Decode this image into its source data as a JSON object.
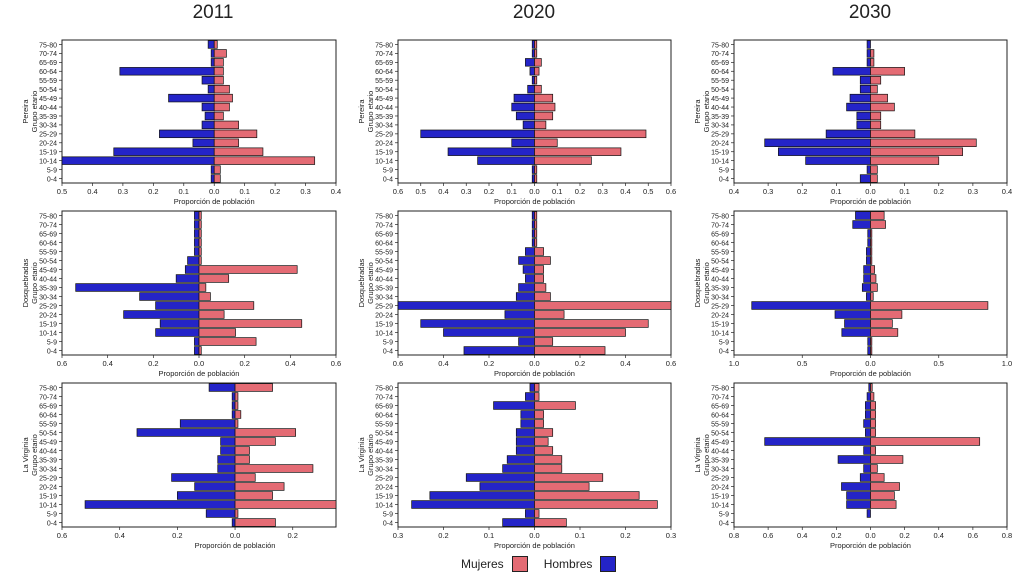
{
  "columns": [
    "2011",
    "2020",
    "2030"
  ],
  "legend": {
    "mujeres": "Mujeres",
    "hombres": "Hombres",
    "mujeres_color": "#E46B74",
    "hombres_color": "#2424C8"
  },
  "age_groups": [
    "0-4",
    "5-9",
    "10-14",
    "15-19",
    "20-24",
    "25-29",
    "30-34",
    "35-39",
    "40-44",
    "45-49",
    "50-54",
    "55-59",
    "60-64",
    "65-69",
    "70-74",
    "75-80"
  ],
  "xlabel": "Proporción de población",
  "ylabel_suffix": "Grupo etario",
  "chart_data": [
    {
      "type": "bar",
      "orientation": "horizontal",
      "municipio": "Pereira",
      "year": "2011",
      "xlim": [
        -0.5,
        0.4
      ],
      "xticks": [
        -0.5,
        -0.4,
        -0.3,
        -0.2,
        -0.1,
        0,
        0.1,
        0.2,
        0.3,
        0.4
      ],
      "xtick_labels": [
        "0.5",
        "0.4",
        "0.3",
        "0.2",
        "0.1",
        "0.0",
        "0.1",
        "0.2",
        "0.3",
        "0.4"
      ],
      "mujeres": [
        0.02,
        0.02,
        0.33,
        0.16,
        0.08,
        0.14,
        0.08,
        0.03,
        0.05,
        0.06,
        0.05,
        0.03,
        0.03,
        0.03,
        0.04,
        0.01
      ],
      "hombres": [
        0.01,
        0.01,
        0.5,
        0.33,
        0.07,
        0.18,
        0.04,
        0.03,
        0.04,
        0.15,
        0.02,
        0.04,
        0.31,
        0.01,
        0.01,
        0.02
      ]
    },
    {
      "type": "bar",
      "orientation": "horizontal",
      "municipio": "Pereira",
      "year": "2020",
      "xlim": [
        -0.6,
        0.6
      ],
      "xticks": [
        -0.6,
        -0.5,
        -0.4,
        -0.3,
        -0.2,
        -0.1,
        0,
        0.1,
        0.2,
        0.3,
        0.4,
        0.5,
        0.6
      ],
      "xtick_labels": [
        "0.6",
        "0.5",
        "0.4",
        "0.3",
        "0.2",
        "0.1",
        "0.0",
        "0.1",
        "0.2",
        "0.3",
        "0.4",
        "0.5",
        "0.6"
      ],
      "mujeres": [
        0.01,
        0.01,
        0.25,
        0.38,
        0.1,
        0.49,
        0.05,
        0.08,
        0.09,
        0.08,
        0.03,
        0.01,
        0.02,
        0.03,
        0.01,
        0.01
      ],
      "hombres": [
        0.01,
        0.01,
        0.25,
        0.38,
        0.1,
        0.5,
        0.05,
        0.08,
        0.1,
        0.09,
        0.03,
        0.01,
        0.02,
        0.04,
        0.01,
        0.01
      ]
    },
    {
      "type": "bar",
      "orientation": "horizontal",
      "municipio": "Pereira",
      "year": "2030",
      "xlim": [
        -0.4,
        0.4
      ],
      "xticks": [
        -0.4,
        -0.3,
        -0.2,
        -0.1,
        0,
        0.1,
        0.2,
        0.3,
        0.4
      ],
      "xtick_labels": [
        "0.4",
        "0.3",
        "0.2",
        "0.1",
        "0.0",
        "0.1",
        "0.2",
        "0.3",
        "0.4"
      ],
      "mujeres": [
        0.02,
        0.02,
        0.2,
        0.27,
        0.31,
        0.13,
        0.03,
        0.03,
        0.07,
        0.05,
        0.02,
        0.03,
        0.1,
        0.01,
        0.01,
        0.0
      ],
      "hombres": [
        0.03,
        0.01,
        0.19,
        0.27,
        0.31,
        0.13,
        0.04,
        0.04,
        0.07,
        0.06,
        0.03,
        0.03,
        0.11,
        0.01,
        0.01,
        0.01
      ]
    },
    {
      "type": "bar",
      "orientation": "horizontal",
      "municipio": "Dosquebradas",
      "year": "2011",
      "xlim": [
        -0.6,
        0.6
      ],
      "xticks": [
        -0.6,
        -0.4,
        -0.2,
        0,
        0.2,
        0.4,
        0.6
      ],
      "xtick_labels": [
        "0.6",
        "0.4",
        "0.2",
        "0.0",
        "0.2",
        "0.4",
        "0.6"
      ],
      "mujeres": [
        0.01,
        0.25,
        0.16,
        0.45,
        0.11,
        0.24,
        0.05,
        0.03,
        0.13,
        0.43,
        0.01,
        0.01,
        0.01,
        0.01,
        0.01,
        0.01
      ],
      "hombres": [
        0.02,
        0.02,
        0.19,
        0.17,
        0.33,
        0.19,
        0.26,
        0.54,
        0.1,
        0.06,
        0.05,
        0.02,
        0.02,
        0.02,
        0.02,
        0.02
      ]
    },
    {
      "type": "bar",
      "orientation": "horizontal",
      "municipio": "Dosquebradas",
      "year": "2020",
      "xlim": [
        -0.6,
        0.6
      ],
      "xticks": [
        -0.6,
        -0.4,
        -0.2,
        0,
        0.2,
        0.4,
        0.6
      ],
      "xtick_labels": [
        "0.6",
        "0.4",
        "0.2",
        "0.0",
        "0.2",
        "0.4",
        "0.6"
      ],
      "mujeres": [
        0.31,
        0.08,
        0.4,
        0.5,
        0.13,
        0.6,
        0.07,
        0.05,
        0.04,
        0.04,
        0.07,
        0.04,
        0.01,
        0.01,
        0.01,
        0.01
      ],
      "hombres": [
        0.31,
        0.07,
        0.4,
        0.5,
        0.13,
        0.6,
        0.08,
        0.07,
        0.04,
        0.05,
        0.07,
        0.04,
        0.01,
        0.01,
        0.01,
        0.01
      ]
    },
    {
      "type": "bar",
      "orientation": "horizontal",
      "municipio": "Dosquebradas",
      "year": "2030",
      "xlim": [
        -1.0,
        1.0
      ],
      "xticks": [
        -1.0,
        -0.5,
        0,
        0.5,
        1.0
      ],
      "xtick_labels": [
        "1.0",
        "0.5",
        "0.0",
        "0.5",
        "1.0"
      ],
      "mujeres": [
        0.01,
        0.01,
        0.2,
        0.16,
        0.23,
        0.86,
        0.02,
        0.05,
        0.04,
        0.03,
        0.01,
        0.01,
        0.01,
        0.01,
        0.11,
        0.1
      ],
      "hombres": [
        0.02,
        0.02,
        0.21,
        0.19,
        0.26,
        0.87,
        0.03,
        0.06,
        0.05,
        0.05,
        0.03,
        0.03,
        0.02,
        0.02,
        0.13,
        0.11
      ]
    },
    {
      "type": "bar",
      "orientation": "horizontal",
      "municipio": "La Virginia",
      "year": "2011",
      "xlim": [
        -0.6,
        0.35
      ],
      "xticks": [
        -0.6,
        -0.4,
        -0.2,
        0,
        0.2
      ],
      "xtick_labels": [
        "0.6",
        "0.4",
        "0.2",
        "0.0",
        "0.2"
      ],
      "mujeres": [
        0.14,
        0.01,
        0.35,
        0.13,
        0.17,
        0.07,
        0.27,
        0.05,
        0.05,
        0.14,
        0.21,
        0.01,
        0.02,
        0.01,
        0.01,
        0.13
      ],
      "hombres": [
        0.01,
        0.1,
        0.52,
        0.2,
        0.14,
        0.22,
        0.06,
        0.06,
        0.05,
        0.05,
        0.34,
        0.19,
        0.01,
        0.01,
        0.01,
        0.09
      ]
    },
    {
      "type": "bar",
      "orientation": "horizontal",
      "municipio": "La Virginia",
      "year": "2020",
      "xlim": [
        -0.3,
        0.3
      ],
      "xticks": [
        -0.3,
        -0.2,
        -0.1,
        0,
        0.1,
        0.2,
        0.3
      ],
      "xtick_labels": [
        "0.3",
        "0.2",
        "0.1",
        "0.0",
        "0.1",
        "0.2",
        "0.3"
      ],
      "mujeres": [
        0.07,
        0.01,
        0.27,
        0.23,
        0.12,
        0.15,
        0.06,
        0.06,
        0.04,
        0.03,
        0.04,
        0.02,
        0.02,
        0.09,
        0.01,
        0.01
      ],
      "hombres": [
        0.07,
        0.02,
        0.27,
        0.23,
        0.12,
        0.15,
        0.07,
        0.06,
        0.04,
        0.04,
        0.04,
        0.03,
        0.03,
        0.09,
        0.02,
        0.01
      ]
    },
    {
      "type": "bar",
      "orientation": "horizontal",
      "municipio": "La Virginia",
      "year": "2030",
      "xlim": [
        -0.8,
        0.8
      ],
      "xticks": [
        -0.8,
        -0.6,
        -0.4,
        -0.2,
        0,
        0.2,
        0.4,
        0.6,
        0.8
      ],
      "xtick_labels": [
        "0.8",
        "0.6",
        "0.4",
        "0.2",
        "0.0",
        "0.2",
        "0.4",
        "0.6",
        "0.8"
      ],
      "mujeres": [
        0.0,
        0.0,
        0.15,
        0.14,
        0.17,
        0.08,
        0.04,
        0.19,
        0.03,
        0.64,
        0.03,
        0.03,
        0.03,
        0.03,
        0.02,
        0.01
      ],
      "hombres": [
        0.0,
        0.02,
        0.14,
        0.14,
        0.17,
        0.06,
        0.04,
        0.19,
        0.04,
        0.62,
        0.03,
        0.04,
        0.03,
        0.03,
        0.02,
        0.01
      ]
    }
  ]
}
